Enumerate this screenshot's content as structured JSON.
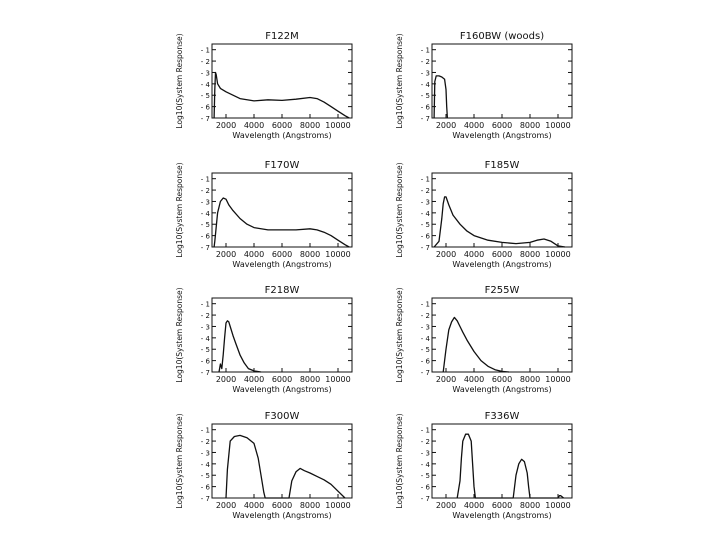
{
  "chart_data": [
    {
      "type": "line",
      "title": "F122M",
      "xlabel": "Wavelength (Angstroms)",
      "ylabel": "Log10(System Response)",
      "xlim": [
        1000,
        11000
      ],
      "ylim": [
        -7,
        -0.5
      ],
      "x_ticks": [
        2000,
        4000,
        6000,
        8000,
        10000
      ],
      "y_ticks": [
        -1,
        -2,
        -3,
        -4,
        -5,
        -6,
        -7
      ],
      "x": [
        1150,
        1200,
        1250,
        1300,
        1400,
        1600,
        2000,
        2500,
        3000,
        4000,
        5000,
        6000,
        7000,
        8000,
        8500,
        9000,
        9500,
        10000,
        10500,
        10800
      ],
      "values": [
        -7,
        -4.5,
        -3.0,
        -3.2,
        -4.0,
        -4.4,
        -4.7,
        -5.0,
        -5.3,
        -5.5,
        -5.4,
        -5.45,
        -5.35,
        -5.2,
        -5.3,
        -5.6,
        -6.0,
        -6.4,
        -6.8,
        -7
      ]
    },
    {
      "type": "line",
      "title": "F160BW (woods)",
      "xlabel": "Wavelength (Angstroms)",
      "ylabel": "Log10(System Response)",
      "xlim": [
        1000,
        11000
      ],
      "ylim": [
        -7,
        -0.5
      ],
      "x_ticks": [
        2000,
        4000,
        6000,
        8000,
        10000
      ],
      "y_ticks": [
        -1,
        -2,
        -3,
        -4,
        -5,
        -6,
        -7
      ],
      "x": [
        1150,
        1200,
        1300,
        1500,
        1700,
        1900,
        2000,
        2050,
        2100
      ],
      "values": [
        -7,
        -3.8,
        -3.3,
        -3.3,
        -3.4,
        -3.6,
        -4.5,
        -6.0,
        -7
      ]
    },
    {
      "type": "line",
      "title": "F170W",
      "xlabel": "Wavelength (Angstroms)",
      "ylabel": "Log10(System Response)",
      "xlim": [
        1000,
        11000
      ],
      "ylim": [
        -7,
        -0.5
      ],
      "x_ticks": [
        2000,
        4000,
        6000,
        8000,
        10000
      ],
      "y_ticks": [
        -1,
        -2,
        -3,
        -4,
        -5,
        -6,
        -7
      ],
      "x": [
        1150,
        1200,
        1400,
        1600,
        1800,
        2000,
        2200,
        2500,
        3000,
        3500,
        4000,
        5000,
        6000,
        7000,
        8000,
        8500,
        9000,
        9500,
        10000,
        10500,
        10800
      ],
      "values": [
        -7,
        -6.5,
        -4.0,
        -3.0,
        -2.7,
        -2.8,
        -3.3,
        -3.8,
        -4.5,
        -5.0,
        -5.3,
        -5.5,
        -5.5,
        -5.5,
        -5.4,
        -5.5,
        -5.7,
        -6.0,
        -6.4,
        -6.8,
        -7
      ]
    },
    {
      "type": "line",
      "title": "F185W",
      "xlabel": "Wavelength (Angstroms)",
      "ylabel": "Log10(System Response)",
      "xlim": [
        1000,
        11000
      ],
      "ylim": [
        -7,
        -0.5
      ],
      "x_ticks": [
        2000,
        4000,
        6000,
        8000,
        10000
      ],
      "y_ticks": [
        -1,
        -2,
        -3,
        -4,
        -5,
        -6,
        -7
      ],
      "x": [
        1150,
        1500,
        1700,
        1800,
        1900,
        2000,
        2200,
        2500,
        3000,
        3500,
        4000,
        5000,
        6000,
        7000,
        7500,
        8000,
        8500,
        9000,
        9500,
        10000,
        10500
      ],
      "values": [
        -7,
        -6.5,
        -4.5,
        -3.2,
        -2.6,
        -2.6,
        -3.3,
        -4.2,
        -5.0,
        -5.6,
        -6.0,
        -6.4,
        -6.6,
        -6.7,
        -6.65,
        -6.6,
        -6.4,
        -6.3,
        -6.5,
        -6.9,
        -7
      ]
    },
    {
      "type": "line",
      "title": "F218W",
      "xlabel": "Wavelength (Angstroms)",
      "ylabel": "Log10(System Response)",
      "xlim": [
        1000,
        11000
      ],
      "ylim": [
        -7,
        -0.5
      ],
      "x_ticks": [
        2000,
        4000,
        6000,
        8000,
        10000
      ],
      "y_ticks": [
        -1,
        -2,
        -3,
        -4,
        -5,
        -6,
        -7
      ],
      "x": [
        1500,
        1600,
        1700,
        1800,
        1900,
        2000,
        2100,
        2200,
        2300,
        2500,
        2700,
        3000,
        3300,
        3600,
        4000,
        4500
      ],
      "values": [
        -7,
        -6.3,
        -6.7,
        -5.5,
        -4.0,
        -2.7,
        -2.5,
        -2.6,
        -3.0,
        -3.8,
        -4.5,
        -5.5,
        -6.2,
        -6.7,
        -6.9,
        -7
      ]
    },
    {
      "type": "line",
      "title": "F255W",
      "xlabel": "Wavelength (Angstroms)",
      "ylabel": "Log10(System Response)",
      "xlim": [
        1000,
        11000
      ],
      "ylim": [
        -7,
        -0.5
      ],
      "x_ticks": [
        2000,
        4000,
        6000,
        8000,
        10000
      ],
      "y_ticks": [
        -1,
        -2,
        -3,
        -4,
        -5,
        -6,
        -7
      ],
      "x": [
        1800,
        1900,
        2000,
        2200,
        2400,
        2600,
        2800,
        3000,
        3200,
        3500,
        4000,
        4500,
        5000,
        5500,
        6000,
        6500
      ],
      "values": [
        -7,
        -6.0,
        -5.0,
        -3.3,
        -2.6,
        -2.2,
        -2.5,
        -3.0,
        -3.5,
        -4.2,
        -5.2,
        -6.0,
        -6.5,
        -6.8,
        -6.95,
        -7
      ]
    },
    {
      "type": "line",
      "title": "F300W",
      "xlabel": "Wavelength (Angstroms)",
      "ylabel": "Log10(System Response)",
      "xlim": [
        1000,
        11000
      ],
      "ylim": [
        -7,
        -0.5
      ],
      "x_ticks": [
        2000,
        4000,
        6000,
        8000,
        10000
      ],
      "y_ticks": [
        -1,
        -2,
        -3,
        -4,
        -5,
        -6,
        -7
      ],
      "x": [
        2000,
        2100,
        2300,
        2600,
        3000,
        3500,
        4000,
        4300,
        4500,
        4700,
        4800,
        6500,
        6700,
        7000,
        7300,
        7600,
        8000,
        8500,
        9000,
        9500,
        10000,
        10500
      ],
      "values": [
        -7,
        -4.5,
        -2.0,
        -1.6,
        -1.5,
        -1.7,
        -2.2,
        -3.5,
        -5.0,
        -6.5,
        -7,
        -7,
        -5.5,
        -4.7,
        -4.4,
        -4.6,
        -4.8,
        -5.1,
        -5.4,
        -5.8,
        -6.4,
        -7
      ]
    },
    {
      "type": "line",
      "title": "F336W",
      "xlabel": "Wavelength (Angstroms)",
      "ylabel": "Log10(System Response)",
      "xlim": [
        1000,
        11000
      ],
      "ylim": [
        -7,
        -0.5
      ],
      "x_ticks": [
        2000,
        4000,
        6000,
        8000,
        10000
      ],
      "y_ticks": [
        -1,
        -2,
        -3,
        -4,
        -5,
        -6,
        -7
      ],
      "x": [
        2800,
        3000,
        3100,
        3200,
        3400,
        3600,
        3800,
        3900,
        4000,
        4100,
        6800,
        6900,
        7000,
        7200,
        7400,
        7600,
        7800,
        7900,
        8000,
        10000,
        10100,
        10200,
        10400
      ],
      "values": [
        -7,
        -5.5,
        -3.5,
        -2.0,
        -1.4,
        -1.4,
        -2.0,
        -4.0,
        -6.0,
        -7,
        -7,
        -6.0,
        -5.0,
        -4.0,
        -3.6,
        -3.8,
        -4.8,
        -6.0,
        -7,
        -7,
        -6.8,
        -6.8,
        -7
      ]
    }
  ]
}
